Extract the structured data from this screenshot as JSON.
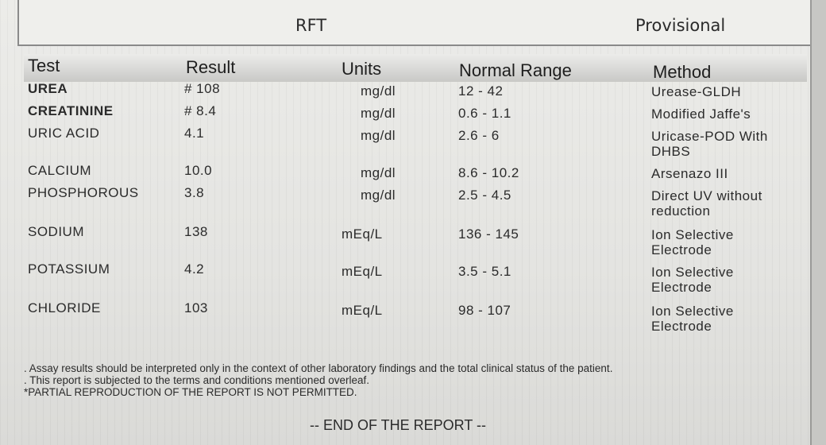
{
  "header": {
    "title": "RFT",
    "status": "Provisional"
  },
  "table": {
    "columns": [
      "Test",
      "Result",
      "Units",
      "Normal Range",
      "Method"
    ],
    "rows": [
      [
        "UREA",
        "# 108",
        "mg/dl",
        "12 - 42",
        "Urease-GLDH"
      ],
      [
        "CREATININE",
        "# 8.4",
        "mg/dl",
        "0.6 - 1.1",
        "Modified Jaffe's"
      ],
      [
        "URIC ACID",
        "4.1",
        "mg/dl",
        "2.6 - 6",
        "Uricase-POD With DHBS"
      ],
      [
        "CALCIUM",
        "10.0",
        "mg/dl",
        "8.6 - 10.2",
        "Arsenazo III"
      ],
      [
        "PHOSPHOROUS",
        "3.8",
        "mg/dl",
        "2.5 - 4.5",
        "Direct UV without reduction"
      ],
      [
        "SODIUM",
        "138",
        "mEq/L",
        "136 - 145",
        "Ion Selective Electrode"
      ],
      [
        "POTASSIUM",
        "4.2",
        "mEq/L",
        "3.5 - 5.1",
        "Ion Selective Electrode"
      ],
      [
        "CHLORIDE",
        "103",
        "mEq/L",
        "98 - 107",
        "Ion Selective Electrode"
      ]
    ]
  },
  "notes": [
    ". Assay results should be interpreted only in the context of other laboratory findings and the total clinical status of the patient.",
    ". This report is subjected to the terms and conditions mentioned overleaf.",
    "*PARTIAL REPRODUCTION OF THE REPORT IS NOT PERMITTED."
  ],
  "footer": "-- END OF THE REPORT --"
}
